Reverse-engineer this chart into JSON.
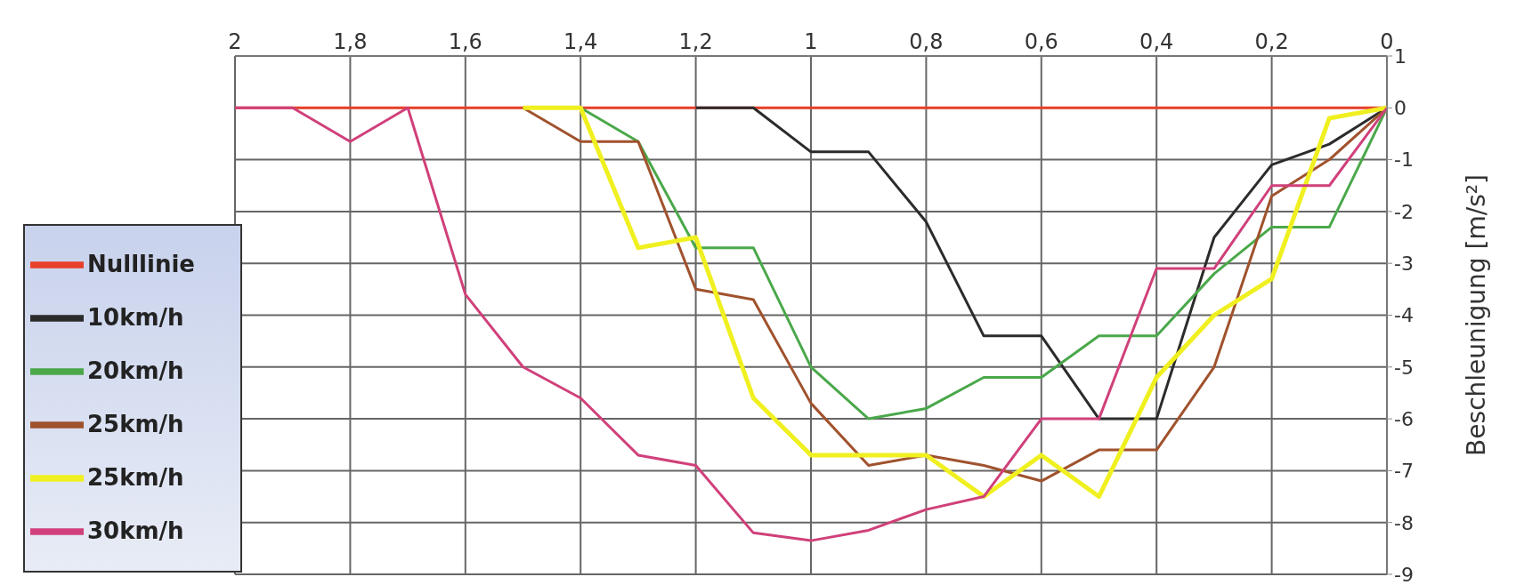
{
  "chart_data": {
    "type": "line",
    "ylabel": "Beschleunigung [m/s²]",
    "x": [
      2,
      1.9,
      1.8,
      1.7,
      1.6,
      1.5,
      1.4,
      1.3,
      1.2,
      1.1,
      1,
      0.9,
      0.8,
      0.7,
      0.6,
      0.5,
      0.4,
      0.3,
      0.2,
      0.1,
      0
    ],
    "xlim": [
      2,
      0
    ],
    "xticks": [
      2,
      {
        "value": 1.8,
        "label": "1,8"
      },
      {
        "value": 1.6,
        "label": "1,6"
      },
      {
        "value": 1.4,
        "label": "1,4"
      },
      {
        "value": 1.2,
        "label": "1,2"
      },
      1,
      {
        "value": 0.8,
        "label": "0,8"
      },
      {
        "value": 0.6,
        "label": "0,6"
      },
      {
        "value": 0.4,
        "label": "0,4"
      },
      {
        "value": 0.2,
        "label": "0,2"
      },
      0
    ],
    "ylim": [
      -9,
      1
    ],
    "yticks": [
      -9,
      -8,
      -7,
      -6,
      -5,
      -4,
      -3,
      -2,
      -1,
      0,
      1
    ],
    "grid": true,
    "legend": "bottom left",
    "marker": "none",
    "line_style": "solid",
    "series": [
      {
        "name": "Nulllinie",
        "color": "#e8402a",
        "values": [
          0,
          0,
          0,
          0,
          0,
          0,
          0,
          0,
          0,
          0,
          0,
          0,
          0,
          0,
          0,
          0,
          0,
          0,
          0,
          0,
          0
        ]
      },
      {
        "name": "10km/h",
        "color": "#2b2b2b",
        "values": [
          null,
          null,
          null,
          null,
          null,
          null,
          null,
          null,
          0,
          0,
          -0.85,
          -0.85,
          -2.2,
          -4.4,
          -4.4,
          -6,
          -6,
          -2.5,
          -1.1,
          -0.7,
          0
        ]
      },
      {
        "name": "20km/h",
        "color": "#4aa84a",
        "values": [
          null,
          null,
          null,
          null,
          null,
          null,
          0,
          -0.65,
          -2.7,
          -2.7,
          -5,
          -6,
          -5.8,
          -5.2,
          -5.2,
          -4.4,
          -4.4,
          -3.2,
          -2.3,
          -2.3,
          0
        ]
      },
      {
        "name": "25km/h",
        "color": "#a0522d",
        "values": [
          null,
          null,
          null,
          null,
          null,
          0,
          -0.65,
          -0.65,
          -3.5,
          -3.7,
          -5.7,
          -6.9,
          -6.7,
          -6.9,
          -7.2,
          -6.6,
          -6.6,
          -5,
          -1.7,
          -1,
          0
        ]
      },
      {
        "name": "25km/h",
        "color": "#f0f020",
        "values": [
          null,
          null,
          null,
          null,
          null,
          0,
          0,
          -2.7,
          -2.5,
          -5.6,
          -6.7,
          -6.7,
          -6.7,
          -7.5,
          -6.7,
          -7.5,
          -5.2,
          -4,
          -3.3,
          -0.2,
          0
        ]
      },
      {
        "name": "30km/h",
        "color": "#d0407a",
        "values": [
          0,
          0,
          -0.65,
          0,
          -3.6,
          -5,
          -5.6,
          -6.7,
          -6.9,
          -8.2,
          -8.35,
          -8.15,
          -7.75,
          -7.5,
          -6,
          -6,
          -3.1,
          -3.1,
          -1.5,
          -1.5,
          0
        ]
      }
    ]
  }
}
